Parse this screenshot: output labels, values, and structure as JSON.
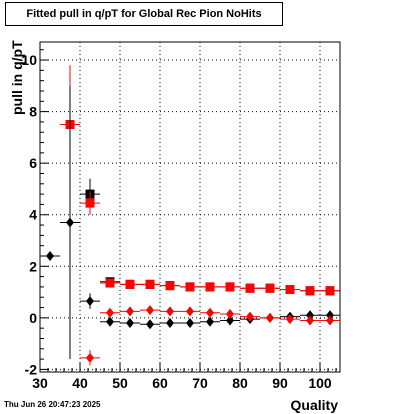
{
  "chart_data": {
    "type": "scatter",
    "title": "Fitted pull in q/pT for Global Rec Pion NoHits",
    "xlabel": "Quality",
    "ylabel": "pull in q/pT",
    "xlim": [
      30,
      105
    ],
    "ylim": [
      -2.1,
      10.7
    ],
    "x_ticks": [
      30,
      40,
      50,
      60,
      70,
      80,
      90,
      100
    ],
    "y_ticks": [
      -2,
      0,
      2,
      4,
      6,
      8,
      10
    ],
    "grid": true,
    "timestamp": "Thu Jun 26 20:47:23 2025",
    "series": [
      {
        "marker": "square",
        "color": "#000000",
        "points": [
          {
            "x": 42.5,
            "y": 4.8,
            "yerr": 0.6
          },
          {
            "x": 47.5,
            "y": 1.4,
            "yerr": 0.15
          },
          {
            "x": 52.5,
            "y": 1.3
          },
          {
            "x": 57.5,
            "y": 1.3
          },
          {
            "x": 62.5,
            "y": 1.25
          },
          {
            "x": 67.5,
            "y": 1.2
          },
          {
            "x": 72.5,
            "y": 1.2
          },
          {
            "x": 77.5,
            "y": 1.2
          },
          {
            "x": 82.5,
            "y": 1.15
          },
          {
            "x": 87.5,
            "y": 1.15
          },
          {
            "x": 92.5,
            "y": 1.1
          },
          {
            "x": 97.5,
            "y": 1.05
          },
          {
            "x": 102.5,
            "y": 1.05
          }
        ]
      },
      {
        "marker": "square",
        "color": "#ff0000",
        "points": [
          {
            "x": 37.5,
            "y": 7.5,
            "yerr": 2.3
          },
          {
            "x": 42.5,
            "y": 4.45,
            "yerr": 0.45
          },
          {
            "x": 47.5,
            "y": 1.35
          },
          {
            "x": 52.5,
            "y": 1.3
          },
          {
            "x": 57.5,
            "y": 1.3
          },
          {
            "x": 62.5,
            "y": 1.25
          },
          {
            "x": 67.5,
            "y": 1.2
          },
          {
            "x": 72.5,
            "y": 1.2
          },
          {
            "x": 77.5,
            "y": 1.2
          },
          {
            "x": 82.5,
            "y": 1.15
          },
          {
            "x": 87.5,
            "y": 1.15
          },
          {
            "x": 92.5,
            "y": 1.1
          },
          {
            "x": 97.5,
            "y": 1.05
          },
          {
            "x": 102.5,
            "y": 1.05
          }
        ]
      },
      {
        "marker": "diamond",
        "color": "#000000",
        "points": [
          {
            "x": 32.5,
            "y": 2.4
          },
          {
            "x": 37.5,
            "y": 3.7,
            "yerr": 5.3
          },
          {
            "x": 42.5,
            "y": 0.65,
            "yerr": 0.3
          },
          {
            "x": 47.5,
            "y": -0.15
          },
          {
            "x": 52.5,
            "y": -0.2
          },
          {
            "x": 57.5,
            "y": -0.25
          },
          {
            "x": 62.5,
            "y": -0.2
          },
          {
            "x": 67.5,
            "y": -0.2
          },
          {
            "x": 72.5,
            "y": -0.15
          },
          {
            "x": 77.5,
            "y": -0.1
          },
          {
            "x": 82.5,
            "y": -0.05
          },
          {
            "x": 87.5,
            "y": 0.0
          },
          {
            "x": 92.5,
            "y": 0.05
          },
          {
            "x": 97.5,
            "y": 0.1
          },
          {
            "x": 102.5,
            "y": 0.1
          }
        ]
      },
      {
        "marker": "diamond",
        "color": "#ff0000",
        "points": [
          {
            "x": 42.5,
            "y": -1.55,
            "yerr": 0.3
          },
          {
            "x": 47.5,
            "y": 0.2
          },
          {
            "x": 52.5,
            "y": 0.25
          },
          {
            "x": 57.5,
            "y": 0.3
          },
          {
            "x": 62.5,
            "y": 0.25
          },
          {
            "x": 67.5,
            "y": 0.25
          },
          {
            "x": 72.5,
            "y": 0.2
          },
          {
            "x": 77.5,
            "y": 0.15
          },
          {
            "x": 82.5,
            "y": 0.05
          },
          {
            "x": 87.5,
            "y": 0.0
          },
          {
            "x": 92.5,
            "y": -0.05
          },
          {
            "x": 97.5,
            "y": -0.1
          },
          {
            "x": 102.5,
            "y": -0.1
          }
        ]
      }
    ]
  }
}
